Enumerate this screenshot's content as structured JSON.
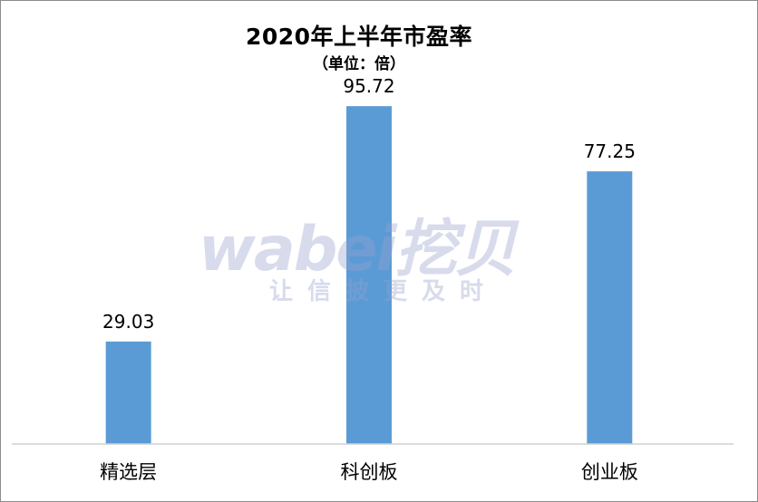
{
  "chart_data": {
    "type": "bar",
    "title": "2020年上半年市盈率",
    "subtitle": "（单位：倍）",
    "categories": [
      "精选层",
      "科创板",
      "创业板"
    ],
    "values": [
      29.03,
      95.72,
      77.25
    ],
    "value_labels": [
      "29.03",
      "95.72",
      "77.25"
    ],
    "ylim": [
      0,
      105
    ],
    "grid": false,
    "legend": "none",
    "bar_color": "#5b9bd5"
  },
  "watermark": {
    "brand": "wabei挖贝",
    "slogan": "让信披更及时"
  }
}
